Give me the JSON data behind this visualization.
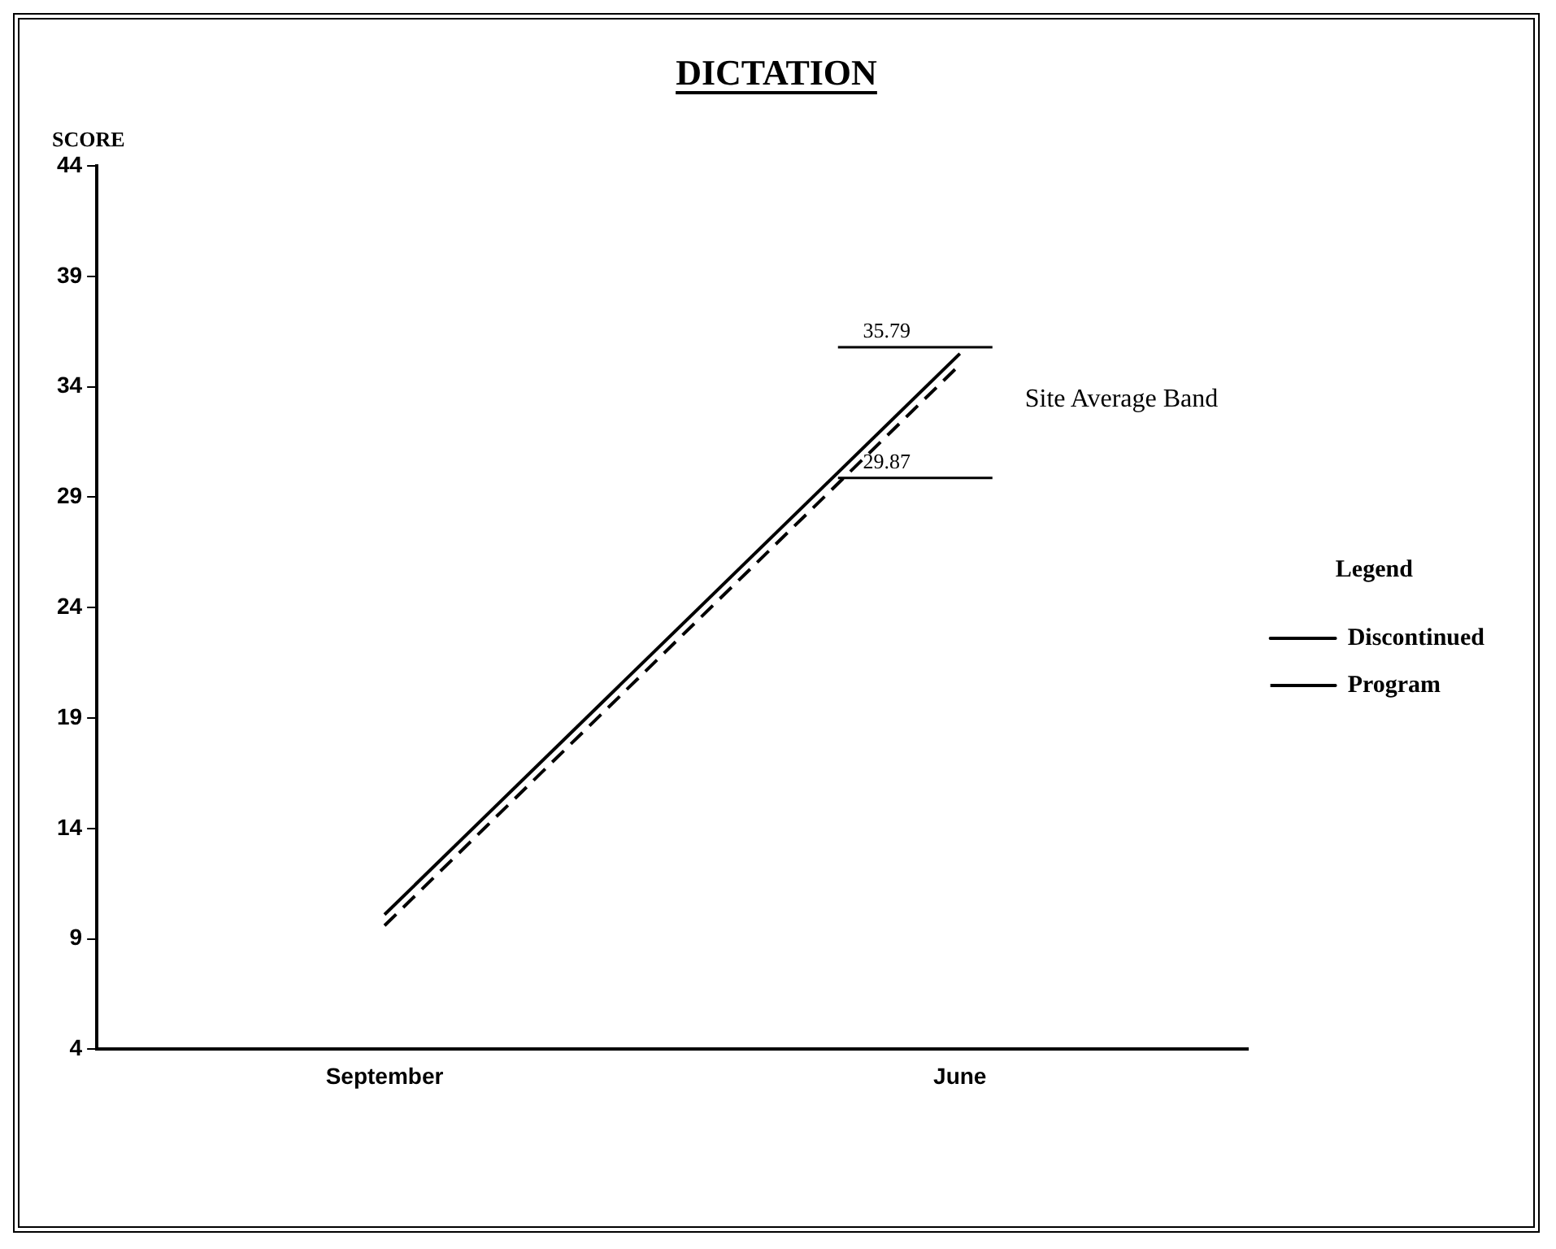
{
  "chart_data": {
    "type": "line",
    "title": "DICTATION",
    "ylabel": "SCORE",
    "categories": [
      "September",
      "June"
    ],
    "series": [
      {
        "name": "Discontinued",
        "color": "#000000",
        "values": [
          10.1,
          35.5
        ],
        "line_style": "solid"
      },
      {
        "name": "Program",
        "color": "#000000",
        "values": [
          9.6,
          35.0
        ],
        "line_style": "dashed"
      }
    ],
    "ylim": [
      4,
      44
    ],
    "yticks": [
      4,
      9,
      14,
      19,
      24,
      29,
      34,
      39,
      44
    ],
    "grid": false,
    "legend": "right",
    "legend_title": "Legend",
    "marker": "none",
    "ref_lines": [
      {
        "axis": "y",
        "value": 35.79,
        "label": "35.79"
      },
      {
        "axis": "y",
        "value": 29.87,
        "label": "29.87"
      }
    ],
    "annotations": [
      "Site Average Band"
    ]
  }
}
